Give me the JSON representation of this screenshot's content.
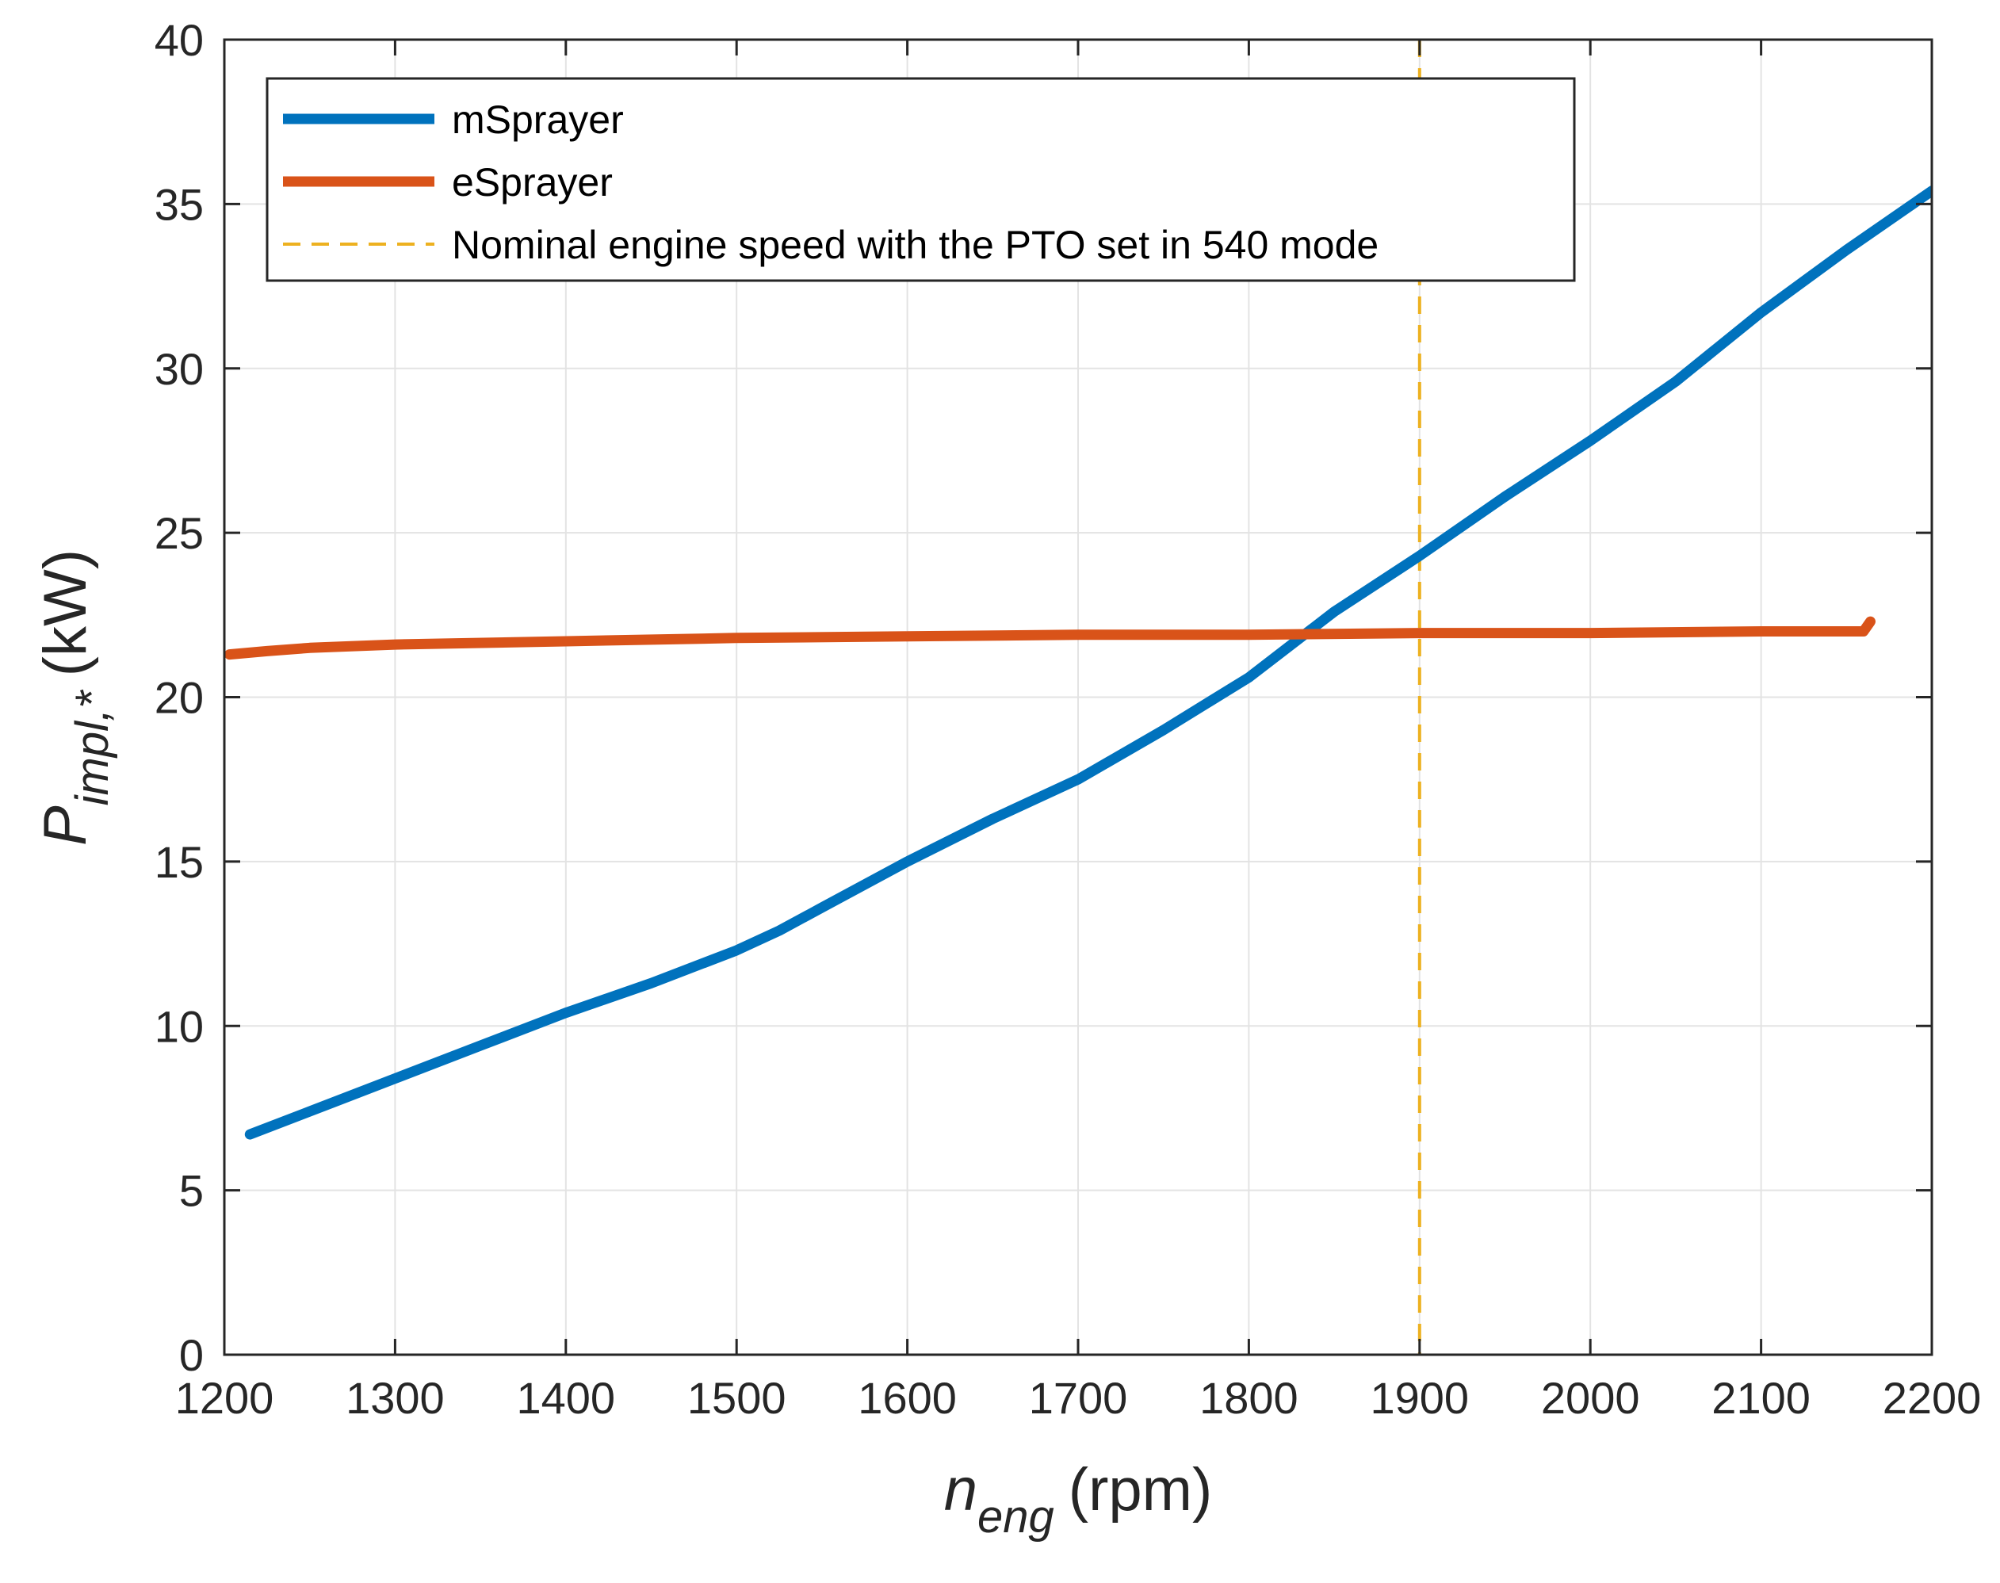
{
  "chart_data": {
    "type": "line",
    "title": "",
    "xlabel": {
      "main": "n",
      "sub": "eng",
      "unit": "(rpm)"
    },
    "ylabel": {
      "main": "P",
      "sub": "impl,*",
      "unit": "(kW)"
    },
    "xlim": [
      1200,
      2200
    ],
    "ylim": [
      0,
      40
    ],
    "xticks": [
      1200,
      1300,
      1400,
      1500,
      1600,
      1700,
      1800,
      1900,
      2000,
      2100,
      2200
    ],
    "yticks": [
      0,
      5,
      10,
      15,
      20,
      25,
      30,
      35,
      40
    ],
    "grid": true,
    "legend_position": "top-left",
    "series": [
      {
        "name": "mSprayer",
        "color": "#0072BD",
        "style": "solid",
        "x": [
          1215,
          1250,
          1300,
          1350,
          1400,
          1450,
          1500,
          1525,
          1550,
          1600,
          1650,
          1700,
          1750,
          1800,
          1850,
          1900,
          1950,
          2000,
          2050,
          2100,
          2150,
          2200
        ],
        "y": [
          6.7,
          7.4,
          8.4,
          9.4,
          10.4,
          11.3,
          12.3,
          12.9,
          13.6,
          15.0,
          16.3,
          17.5,
          19.0,
          20.6,
          22.6,
          24.3,
          26.1,
          27.8,
          29.6,
          31.7,
          33.6,
          35.4
        ]
      },
      {
        "name": "eSprayer",
        "color": "#D95319",
        "style": "solid",
        "x": [
          1203,
          1225,
          1250,
          1300,
          1400,
          1500,
          1600,
          1700,
          1800,
          1900,
          2000,
          2100,
          2160,
          2164
        ],
        "y": [
          21.3,
          21.4,
          21.5,
          21.6,
          21.7,
          21.8,
          21.85,
          21.9,
          21.9,
          21.95,
          21.95,
          22.0,
          22.0,
          22.3
        ]
      }
    ],
    "reference_lines": [
      {
        "name": "Nominal engine speed with the PTO set in 540 mode",
        "color": "#EDB120",
        "style": "dashed",
        "x": 1900
      }
    ]
  }
}
